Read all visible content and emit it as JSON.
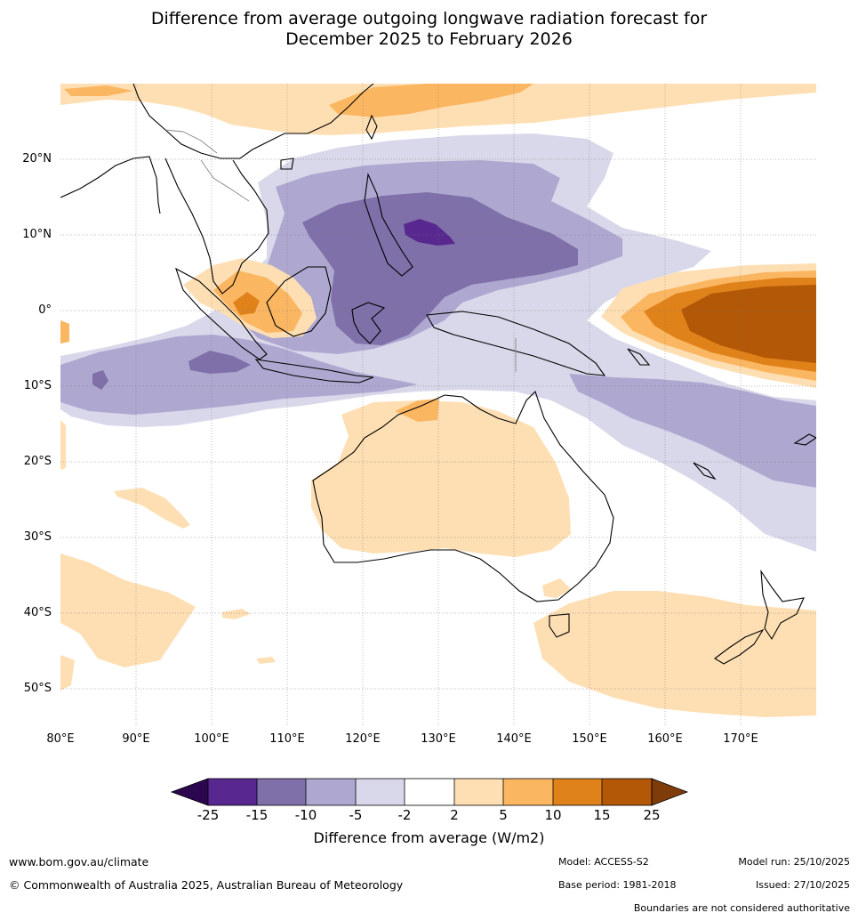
{
  "title": {
    "line1": "Difference from average outgoing longwave radiation forecast for",
    "line2": "December 2025 to February 2026"
  },
  "map": {
    "lat_labels": [
      "20°N",
      "10°N",
      "0°",
      "10°S",
      "20°S",
      "30°S",
      "40°S",
      "50°S"
    ],
    "lon_labels": [
      "80°E",
      "90°E",
      "100°E",
      "110°E",
      "120°E",
      "130°E",
      "140°E",
      "150°E",
      "160°E",
      "170°E"
    ],
    "colors": {
      "neg25": "#2d0650",
      "neg15": "#58278f",
      "neg10": "#7f70a9",
      "neg5": "#aea8d1",
      "neg2": "#d8d8ea",
      "zero": "#ffffff",
      "pos2": "#fedfb3",
      "pos5": "#fbb662",
      "pos10": "#e0821a",
      "pos15": "#b35806",
      "pos25": "#7f3b08"
    }
  },
  "colorbar": {
    "ticks": [
      "-25",
      "-15",
      "-10",
      "-5",
      "-2",
      "2",
      "5",
      "10",
      "15",
      "25"
    ],
    "label": "Difference from average (W/m2)"
  },
  "footer": {
    "url": "www.bom.gov.au/climate",
    "copyright": "© Commonwealth of Australia 2025, Australian Bureau of Meteorology",
    "model": "Model: ACCESS-S2",
    "base_period": "Base period: 1981-2018",
    "model_run": "Model run: 25/10/2025",
    "issued": "Issued: 27/10/2025",
    "disclaimer": "Boundaries are not considered authoritative"
  }
}
